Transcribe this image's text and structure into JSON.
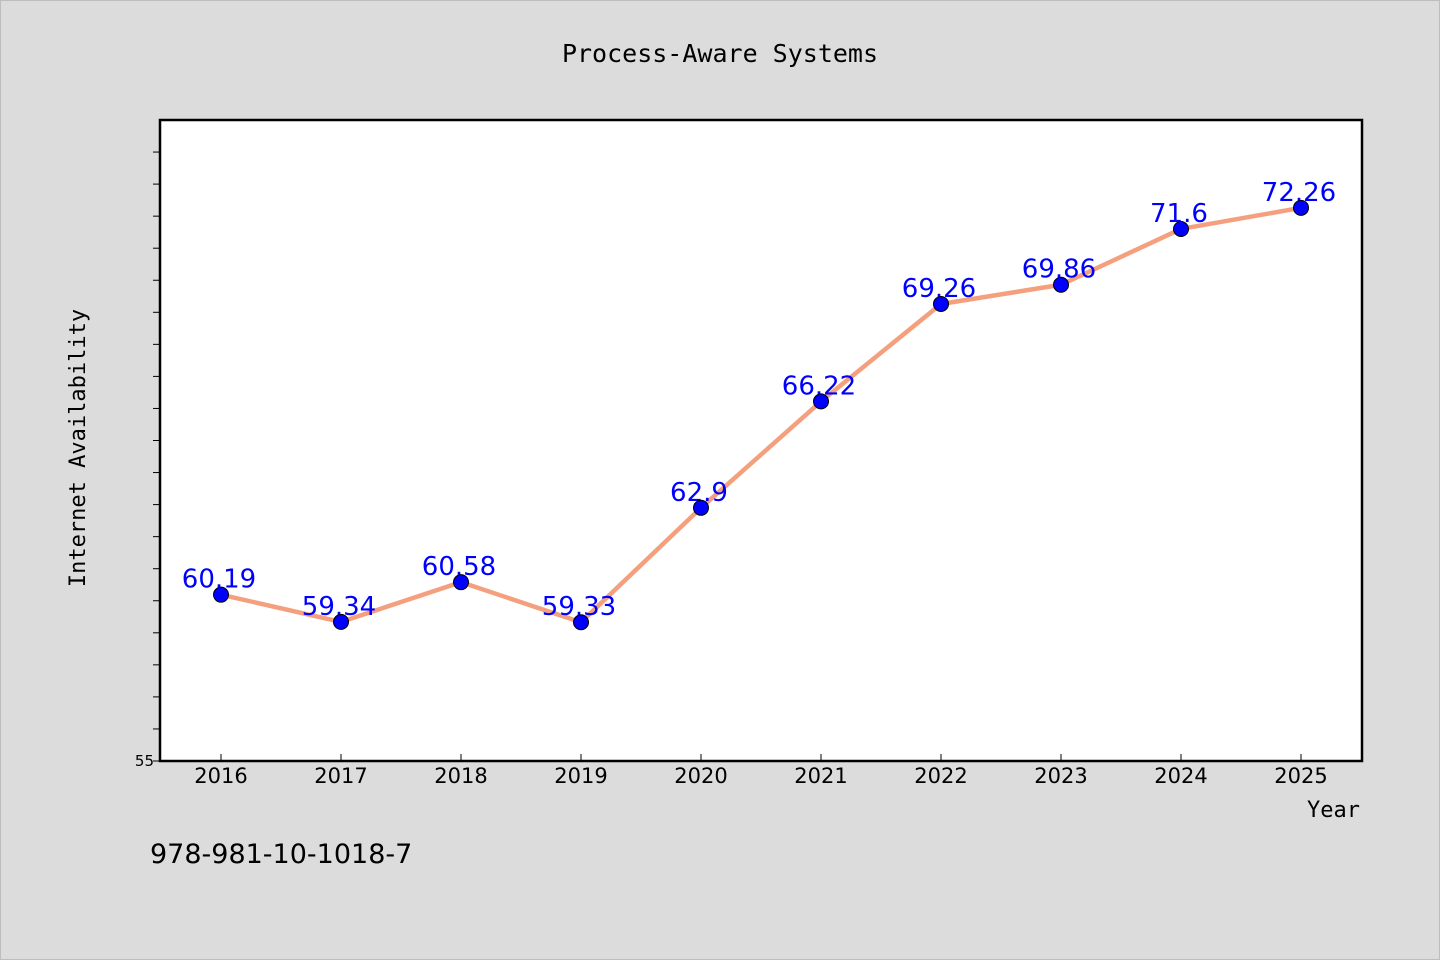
{
  "chart_data": {
    "type": "line",
    "title": "Process-Aware Systems",
    "xlabel": "Year",
    "ylabel": "Internet Availability",
    "categories": [
      "2016",
      "2017",
      "2018",
      "2019",
      "2020",
      "2021",
      "2022",
      "2023",
      "2024",
      "2025"
    ],
    "series": [
      {
        "values": [
          60.19,
          59.34,
          60.58,
          59.33,
          62.9,
          66.22,
          69.26,
          69.86,
          71.6,
          72.26
        ],
        "labels": [
          "60.19",
          "59.34",
          "60.58",
          "59.33",
          "62.9",
          "66.22",
          "69.26",
          "69.86",
          "71.6",
          "72.26"
        ],
        "line_color": "#f4a07f",
        "marker_color": "#0000ff"
      }
    ],
    "ylim": [
      55,
      75
    ],
    "y_tick_labels": [
      {
        "value": 55,
        "label": "55"
      }
    ],
    "y_minor_tick_step": 1,
    "grid": false,
    "legend": "none"
  },
  "footer": {
    "isbn": "978-981-10-1018-7"
  },
  "colors": {
    "background": "#dcdcdc",
    "plot_background": "#ffffff",
    "line": "#f4a07f",
    "marker": "#0000ff",
    "data_label": "#0000ff"
  }
}
